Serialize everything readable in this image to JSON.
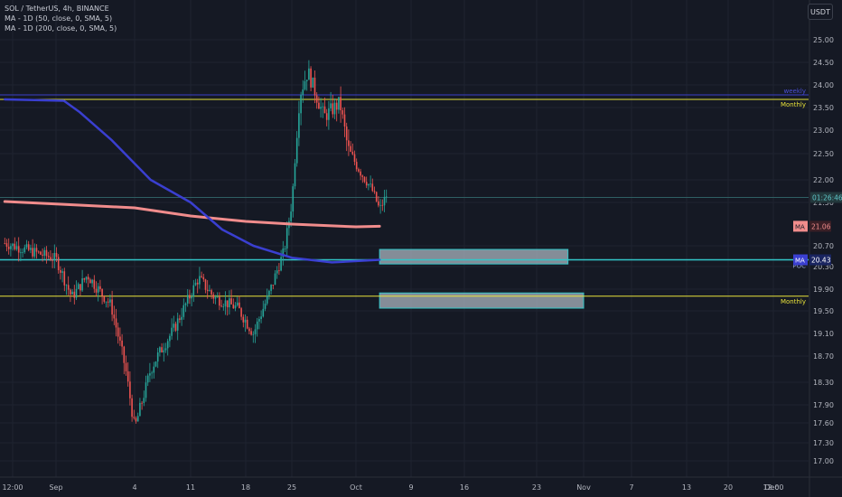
{
  "legend": {
    "symbol": "SOL / TetherUS, 4h, BINANCE",
    "ma50": "MA - 1D (50, close, 0, SMA, 5)",
    "ma200": "MA - 1D (200, close, 0, SMA, 5)"
  },
  "currency_label": "USDT",
  "chart_data": {
    "type": "candlestick",
    "title": "SOL / TetherUS, 4h, BINANCE",
    "y_ticks": [
      "25.00",
      "24.50",
      "24.00",
      "23.50",
      "23.00",
      "22.50",
      "22.00",
      "21.50",
      "20.70",
      "20.30",
      "19.90",
      "19.50",
      "19.10",
      "18.70",
      "18.30",
      "17.90",
      "17.60",
      "17.30",
      "17.00"
    ],
    "x_ticks": [
      "12:00",
      "Sep",
      "4",
      "11",
      "18",
      "25",
      "Oct",
      "9",
      "16",
      "23",
      "Nov",
      "7",
      "13",
      "20",
      "12:00",
      "Dec"
    ],
    "price_segments": [
      [
        "Aug 30 12:00",
        20.75
      ],
      [
        "Sep 1",
        20.45
      ],
      [
        "Sep 3",
        19.75
      ],
      [
        "Sep 5",
        20.15
      ],
      [
        "Sep 8",
        19.6
      ],
      [
        "Sep 10",
        18.4
      ],
      [
        "Sep 11",
        17.5
      ],
      [
        "Sep 13",
        18.5
      ],
      [
        "Sep 16",
        19.2
      ],
      [
        "Sep 19",
        20.1
      ],
      [
        "Sep 21",
        19.75
      ],
      [
        "Sep 24",
        19.55
      ],
      [
        "Sep 26",
        19.1
      ],
      [
        "Sep 28",
        19.8
      ],
      [
        "Sep 30",
        20.6
      ],
      [
        "Oct 1",
        21.5
      ],
      [
        "Oct 2",
        23.8
      ],
      [
        "Oct 3",
        24.3
      ],
      [
        "Oct 5",
        23.3
      ],
      [
        "Oct 7",
        23.6
      ],
      [
        "Oct 8",
        22.6
      ],
      [
        "Oct 9",
        22.3
      ],
      [
        "Oct 11",
        21.8
      ],
      [
        "Oct 12",
        21.35
      ],
      [
        "Oct 13",
        21.7
      ]
    ],
    "series": [
      {
        "name": "MA - 1D (50, close, 0, SMA, 5)",
        "color": "#f08c8c",
        "points": [
          [
            "Aug 30 12:00",
            21.52
          ],
          [
            "Sep 4",
            21.45
          ],
          [
            "Sep 11",
            21.4
          ],
          [
            "Sep 18",
            21.25
          ],
          [
            "Sep 25",
            21.15
          ],
          [
            "Oct 1",
            21.1
          ],
          [
            "Oct 9",
            21.05
          ],
          [
            "Oct 12",
            21.06
          ]
        ]
      },
      {
        "name": "MA - 1D (200, close, 0, SMA, 5)",
        "color": "#3a3fd0",
        "points": [
          [
            "Aug 30 12:00",
            23.68
          ],
          [
            "Sep 2",
            23.65
          ],
          [
            "Sep 4",
            23.4
          ],
          [
            "Sep 8",
            22.8
          ],
          [
            "Sep 13",
            22.0
          ],
          [
            "Sep 18",
            21.5
          ],
          [
            "Sep 22",
            21.0
          ],
          [
            "Sep 26",
            20.7
          ],
          [
            "Oct 1",
            20.47
          ],
          [
            "Oct 6",
            20.38
          ],
          [
            "Oct 12",
            20.43
          ]
        ]
      }
    ],
    "horizontal_lines": [
      {
        "label": "weekly",
        "value": 23.78,
        "color": "#3b40c8"
      },
      {
        "label": "Monthly",
        "value": 23.68,
        "color": "#e8e23a"
      },
      {
        "label": "",
        "value": 21.61,
        "color": "#2f5f63"
      },
      {
        "label": "POC",
        "value": 20.43,
        "color": "#32c6c9"
      },
      {
        "label": "Monthly",
        "value": 19.77,
        "color": "#e8e23a"
      }
    ],
    "zones": [
      {
        "start": "Oct 12",
        "end": "Nov 5",
        "low": 20.35,
        "high": 20.63,
        "color": "#aab4bf"
      },
      {
        "start": "Oct 12",
        "end": "Nov 7",
        "low": 19.55,
        "high": 19.83,
        "color": "#aab4bf"
      }
    ],
    "price_labels": [
      {
        "text": "01:26:46",
        "value": 21.61,
        "bg": "#23383c",
        "fg": "#5fc7c9"
      },
      {
        "text": "MA",
        "value": 21.06,
        "bg": "#f08c8c",
        "fg": "#151924"
      },
      {
        "text": "21.06",
        "value": 21.06,
        "bg": "#3a1f26",
        "fg": "#f08c8c"
      },
      {
        "text": "MA",
        "value": 20.43,
        "bg": "#3a3fd0",
        "fg": "#ffffff"
      },
      {
        "text": "20.43",
        "value": 20.43,
        "bg": "#1a2560",
        "fg": "#ffffff"
      }
    ],
    "line_labels": [
      {
        "text": "weekly",
        "value": 23.78,
        "color": "#4a4fd8"
      },
      {
        "text": "Monthly",
        "value": 23.68,
        "color": "#e8e23a"
      },
      {
        "text": "POC",
        "value": 20.43,
        "color": "#8fa0c8"
      },
      {
        "text": "Monthly",
        "value": 19.77,
        "color": "#e8e23a"
      }
    ],
    "colors": {
      "up": "#26a69a",
      "down": "#ef5350",
      "grid": "#1f2430",
      "background": "#151924"
    }
  }
}
